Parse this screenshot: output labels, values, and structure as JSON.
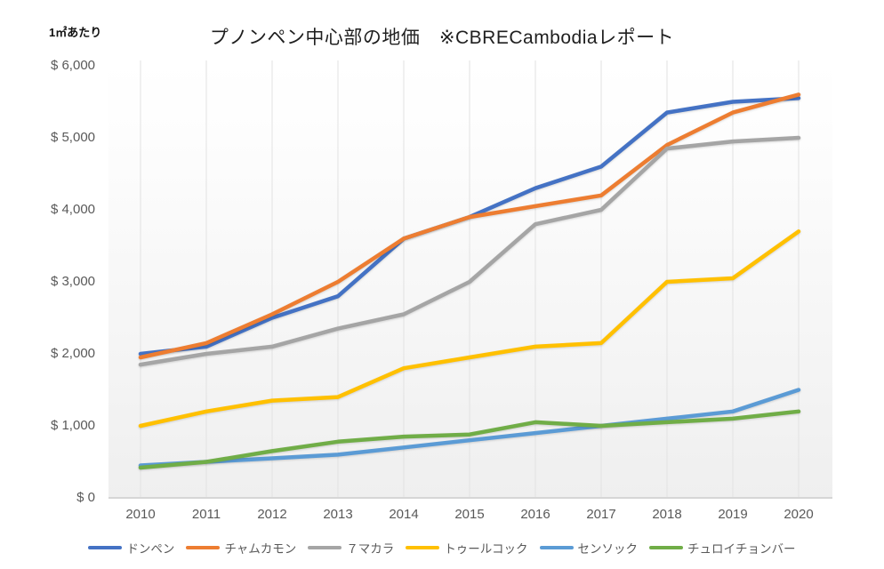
{
  "page": {
    "unit_label": "1㎡あたり"
  },
  "chart_data": {
    "type": "line",
    "title": "プノンペン中心部の地価　※CBRECambodiaレポート",
    "subtitle": "",
    "unit_label": "1㎡あたり",
    "xlabel": "",
    "ylabel": "",
    "x": [
      "2010",
      "2011",
      "2012",
      "2013",
      "2014",
      "2015",
      "2016",
      "2017",
      "2018",
      "2019",
      "2020"
    ],
    "ylim": [
      0,
      6000
    ],
    "ytick_interval": 1000,
    "ytick_labels": [
      "$ 6,000",
      "$ 5,000",
      "$ 4,000",
      "$ 3,000",
      "$ 2,000",
      "$ 1,000",
      "$ 0"
    ],
    "grid": "vertical-only",
    "legend_position": "bottom",
    "series": [
      {
        "name": "ドンペン",
        "color": "#4472C4",
        "values": [
          2000,
          2100,
          2500,
          2800,
          3600,
          3900,
          4300,
          4600,
          5350,
          5500,
          5550
        ]
      },
      {
        "name": "チャムカモン",
        "color": "#ED7D31",
        "values": [
          1950,
          2150,
          2550,
          3000,
          3600,
          3900,
          4050,
          4200,
          4900,
          5350,
          5600
        ]
      },
      {
        "name": "７マカラ",
        "color": "#A5A5A5",
        "values": [
          1850,
          2000,
          2100,
          2350,
          2550,
          3000,
          3800,
          4000,
          4850,
          4950,
          5000
        ]
      },
      {
        "name": "トゥールコック",
        "color": "#FFC000",
        "values": [
          1000,
          1200,
          1350,
          1400,
          1800,
          1950,
          2100,
          2150,
          3000,
          3050,
          3700
        ]
      },
      {
        "name": "センソック",
        "color": "#5B9BD5",
        "values": [
          450,
          500,
          550,
          600,
          700,
          800,
          900,
          1000,
          1100,
          1200,
          1500
        ]
      },
      {
        "name": "チュロイチョンバー",
        "color": "#70AD47",
        "values": [
          420,
          500,
          650,
          780,
          850,
          880,
          1050,
          1000,
          1050,
          1100,
          1200
        ]
      }
    ],
    "colors": {
      "title_text": "#1f1f1f",
      "axis_text": "#595959",
      "gridline": "#e2e2e2",
      "axis_line": "#d6d6d6",
      "plot_bg_top": "#ffffff",
      "plot_bg_bottom": "#efefef"
    }
  }
}
